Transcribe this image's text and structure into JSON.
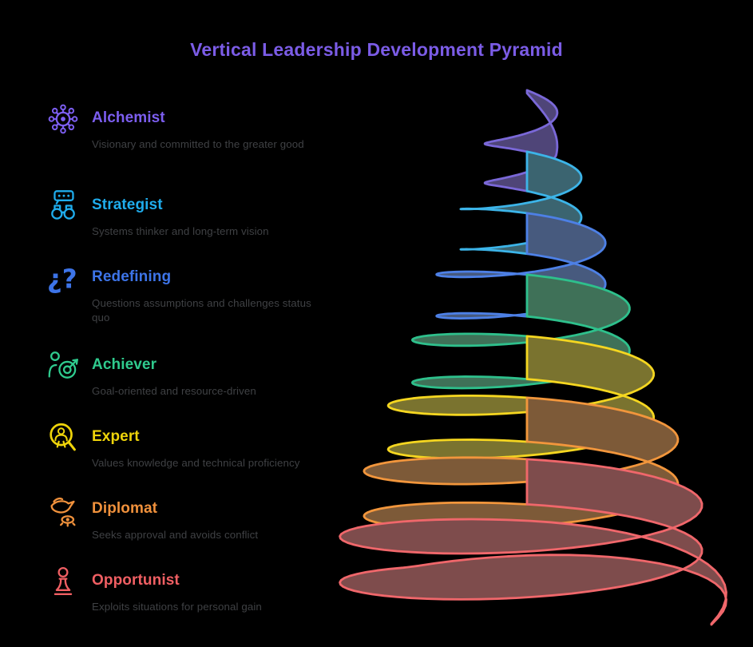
{
  "title": "Vertical Leadership Development Pyramid",
  "colors": {
    "background": "#000000",
    "title": "#7B5CE6",
    "description_text": "#3F4144"
  },
  "levels": [
    {
      "name": "Alchemist",
      "description": "Visionary and committed to the greater good",
      "color": "#7C5EF0",
      "icon": "molecule-icon"
    },
    {
      "name": "Strategist",
      "description": "Systems thinker and long-term vision",
      "color": "#1FACEC",
      "icon": "binoculars-chat-icon"
    },
    {
      "name": "Redefining",
      "description": "Questions assumptions and challenges status quo",
      "color": "#3D74E8",
      "icon": "question-marks-icon"
    },
    {
      "name": "Achiever",
      "description": "Goal-oriented and resource-driven",
      "color": "#2FCB8E",
      "icon": "person-target-icon"
    },
    {
      "name": "Expert",
      "description": "Values knowledge and technical proficiency",
      "color": "#EFD40A",
      "icon": "magnifier-award-icon"
    },
    {
      "name": "Diplomat",
      "description": "Seeks approval and avoids conflict",
      "color": "#F0913C",
      "icon": "dove-eye-icon"
    },
    {
      "name": "Opportunist",
      "description": "Exploits situations for personal gain",
      "color": "#F05F63",
      "icon": "chess-pawn-icon"
    }
  ],
  "pyramid": {
    "bands": [
      {
        "level": "Alchemist",
        "stroke": "#7A68D8",
        "fill": "#4F4578"
      },
      {
        "level": "Strategist",
        "stroke": "#3CB4E8",
        "fill": "#3B6470"
      },
      {
        "level": "Redefining",
        "stroke": "#4D80E6",
        "fill": "#475A7E"
      },
      {
        "level": "Achiever",
        "stroke": "#2EC08C",
        "fill": "#3F7158"
      },
      {
        "level": "Expert",
        "stroke": "#F5D620",
        "fill": "#7A732F"
      },
      {
        "level": "Diplomat",
        "stroke": "#F2963C",
        "fill": "#7D5A38"
      },
      {
        "level": "Opportunist",
        "stroke": "#F0676B",
        "fill": "#7E4C4C"
      }
    ]
  }
}
